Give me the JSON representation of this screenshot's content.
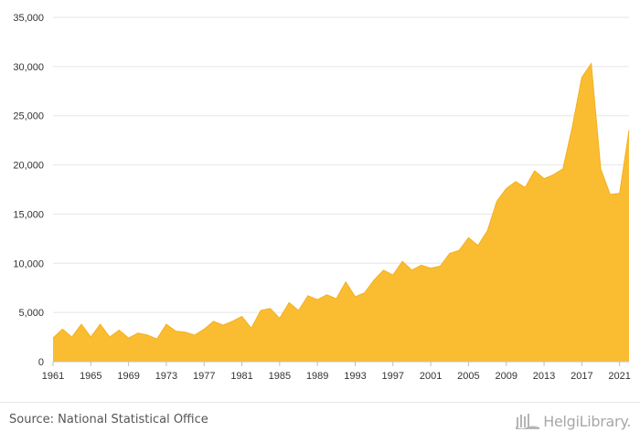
{
  "chart_data": {
    "type": "area",
    "x": [
      1961,
      1962,
      1963,
      1964,
      1965,
      1966,
      1967,
      1968,
      1969,
      1970,
      1971,
      1972,
      1973,
      1974,
      1975,
      1976,
      1977,
      1978,
      1979,
      1980,
      1981,
      1982,
      1983,
      1984,
      1985,
      1986,
      1987,
      1988,
      1989,
      1990,
      1991,
      1992,
      1993,
      1994,
      1995,
      1996,
      1997,
      1998,
      1999,
      2000,
      2001,
      2002,
      2003,
      2004,
      2005,
      2006,
      2007,
      2008,
      2009,
      2010,
      2011,
      2012,
      2013,
      2014,
      2015,
      2016,
      2017,
      2018,
      2019,
      2020,
      2021,
      2022
    ],
    "values": [
      2400,
      3300,
      2500,
      3800,
      2500,
      3800,
      2500,
      3200,
      2400,
      2900,
      2700,
      2300,
      3800,
      3100,
      3000,
      2700,
      3300,
      4100,
      3700,
      4100,
      4600,
      3400,
      5200,
      5400,
      4400,
      6000,
      5200,
      6700,
      6300,
      6800,
      6400,
      8100,
      6600,
      7000,
      8300,
      9300,
      8800,
      10200,
      9300,
      9800,
      9500,
      9700,
      11000,
      11300,
      12600,
      11800,
      13300,
      16300,
      17600,
      18300,
      17700,
      19400,
      18600,
      19000,
      19600,
      23900,
      28900,
      30300,
      19600,
      17000,
      17100,
      23500
    ],
    "xticks": [
      "1961",
      "1965",
      "1969",
      "1973",
      "1977",
      "1981",
      "1985",
      "1989",
      "1993",
      "1997",
      "2001",
      "2005",
      "2009",
      "2013",
      "2017",
      "2021"
    ],
    "yticks": [
      "0",
      "5,000",
      "10,000",
      "15,000",
      "20,000",
      "25,000",
      "30,000",
      "35,000"
    ],
    "ylim": [
      0,
      35000
    ],
    "xlim": [
      1961,
      2022
    ],
    "title": "",
    "xlabel": "",
    "ylabel": "",
    "grid": true,
    "fill_color": "#fabd32",
    "line_color": "#f2b01e"
  },
  "footer": {
    "source": "Source: National Statistical Office",
    "logo_text": "HelgiLibrary."
  }
}
